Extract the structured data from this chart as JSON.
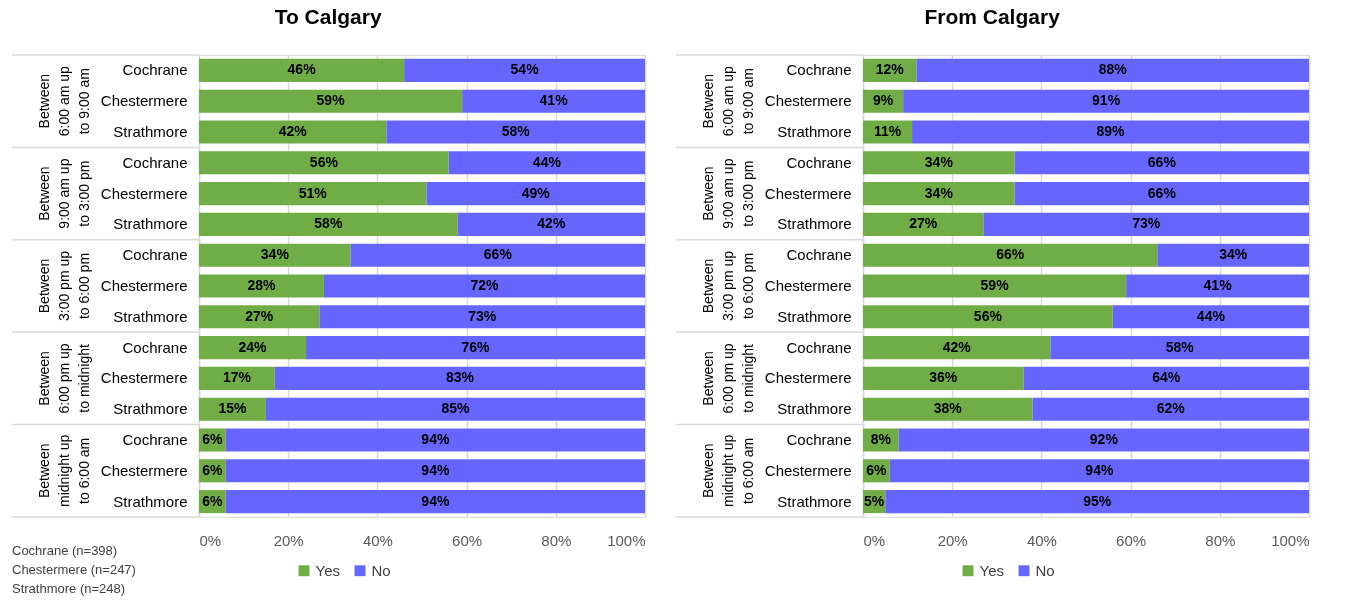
{
  "chart_data": [
    {
      "type": "bar",
      "title": "To Calgary",
      "orientation": "horizontal",
      "stacked": true,
      "categories": [
        "Cochrane",
        "Chestermere",
        "Strathmore",
        "Cochrane",
        "Chestermere",
        "Strathmore",
        "Cochrane",
        "Chestermere",
        "Strathmore",
        "Cochrane",
        "Chestermere",
        "Strathmore",
        "Cochrane",
        "Chestermere",
        "Strathmore"
      ],
      "series": [
        {
          "name": "Yes",
          "color": "#70ad47",
          "values": [
            46,
            59,
            42,
            56,
            51,
            58,
            34,
            28,
            27,
            24,
            17,
            15,
            6,
            6,
            6
          ],
          "value_labels": [
            "46%",
            "59%",
            "42%",
            "56%",
            "51%",
            "58%",
            "34%",
            "28%",
            "27%",
            "24%",
            "17%",
            "15%",
            "6%",
            "6%",
            "6%"
          ]
        },
        {
          "name": "No",
          "color": "#6666ff",
          "values": [
            54,
            41,
            58,
            44,
            49,
            42,
            66,
            72,
            73,
            76,
            83,
            85,
            94,
            94,
            94
          ],
          "value_labels": [
            "54%",
            "41%",
            "58%",
            "44%",
            "49%",
            "42%",
            "66%",
            "72%",
            "73%",
            "76%",
            "83%",
            "85%",
            "94%",
            "94%",
            "94%"
          ]
        }
      ],
      "xlim": [
        0,
        100
      ],
      "xticks": [
        {
          "value": 0,
          "label": "0%"
        },
        {
          "value": 20,
          "label": "20%"
        },
        {
          "value": 40,
          "label": "40%"
        },
        {
          "value": 60,
          "label": "60%"
        },
        {
          "value": 80,
          "label": "80%"
        },
        {
          "value": 100,
          "label": "100%"
        }
      ],
      "grid": "x",
      "legend": "bottom",
      "annotations": [
        "Between 6:00 am up to 9:00 am",
        "Between 9:00 am up to 3:00 pm",
        "Between 3:00 pm up to 6:00 pm",
        "Between 6:00 pm up to midnight",
        "Between midnight up to 6:00 am",
        "Cochrane (n=398)",
        "Chestermere (n=247)",
        "Strathmore (n=248)"
      ]
    },
    {
      "type": "bar",
      "title": "From Calgary",
      "orientation": "horizontal",
      "stacked": true,
      "categories": [
        "Cochrane",
        "Chestermere",
        "Strathmore",
        "Cochrane",
        "Chestermere",
        "Strathmore",
        "Cochrane",
        "Chestermere",
        "Strathmore",
        "Cochrane",
        "Chestermere",
        "Strathmore",
        "Cochrane",
        "Chestermere",
        "Strathmore"
      ],
      "series": [
        {
          "name": "Yes",
          "color": "#70ad47",
          "values": [
            12,
            9,
            11,
            34,
            34,
            27,
            66,
            59,
            56,
            42,
            36,
            38,
            8,
            6,
            5
          ],
          "value_labels": [
            "12%",
            "9%",
            "11%",
            "34%",
            "34%",
            "27%",
            "66%",
            "59%",
            "56%",
            "42%",
            "36%",
            "38%",
            "8%",
            "6%",
            "5%"
          ]
        },
        {
          "name": "No",
          "color": "#6666ff",
          "values": [
            88,
            91,
            89,
            66,
            66,
            73,
            34,
            41,
            44,
            58,
            64,
            62,
            92,
            94,
            95
          ],
          "value_labels": [
            "88%",
            "91%",
            "89%",
            "66%",
            "66%",
            "73%",
            "34%",
            "41%",
            "44%",
            "58%",
            "64%",
            "62%",
            "92%",
            "94%",
            "95%"
          ]
        }
      ],
      "xlim": [
        0,
        100
      ],
      "xticks": [
        {
          "value": 0,
          "label": "0%"
        },
        {
          "value": 20,
          "label": "20%"
        },
        {
          "value": 40,
          "label": "40%"
        },
        {
          "value": 60,
          "label": "60%"
        },
        {
          "value": 80,
          "label": "80%"
        },
        {
          "value": 100,
          "label": "100%"
        }
      ],
      "grid": "x",
      "legend": "bottom",
      "annotations": [
        "Between 6:00 am up to 9:00 am",
        "Between 9:00 am up to 3:00 pm",
        "Between 3:00 pm up to 6:00 pm",
        "Between 6:00 pm up to midnight",
        "Between midnight up to 6:00 am"
      ]
    }
  ]
}
